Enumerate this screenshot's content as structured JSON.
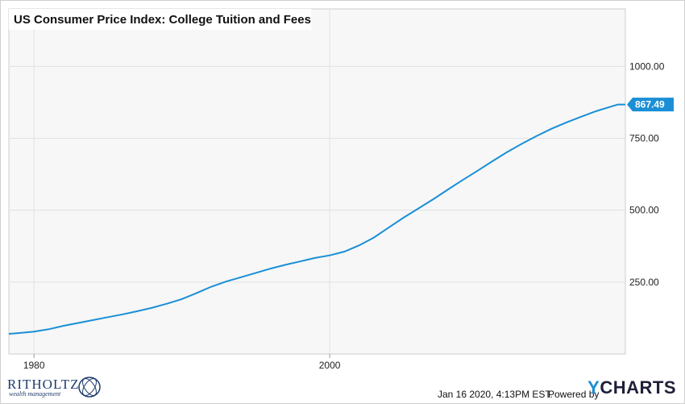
{
  "chart_data": {
    "type": "line",
    "title": "US Consumer Price Index: College Tuition and Fees",
    "xlabel": "",
    "ylabel": "",
    "ylim": [
      0,
      1200
    ],
    "xlim": [
      1978.3,
      2020.0
    ],
    "y_ticks": [
      250,
      500,
      750,
      1000
    ],
    "y_tick_labels": [
      "250.00",
      "500.00",
      "750.00",
      "1000.00"
    ],
    "x_ticks": [
      1980,
      2000
    ],
    "x_tick_labels": [
      "1980",
      "2000"
    ],
    "grid": true,
    "last_value": 867.49,
    "last_value_label": "867.49",
    "series": [
      {
        "color": "#1a8fd6",
        "x": [
          1978.3,
          1979.0,
          1980.0,
          1981.0,
          1982.0,
          1983.0,
          1984.0,
          1985.0,
          1986.0,
          1987.0,
          1988.0,
          1989.0,
          1990.0,
          1991.0,
          1992.0,
          1993.0,
          1994.0,
          1995.0,
          1996.0,
          1997.0,
          1998.0,
          1999.0,
          2000.0,
          2001.0,
          2002.0,
          2003.0,
          2004.0,
          2005.0,
          2006.0,
          2007.0,
          2008.0,
          2009.0,
          2010.0,
          2011.0,
          2012.0,
          2013.0,
          2014.0,
          2015.0,
          2016.0,
          2017.0,
          2018.0,
          2019.0,
          2019.5,
          2020.0
        ],
        "y": [
          70,
          73,
          78,
          86,
          98,
          108,
          118,
          128,
          138,
          149,
          161,
          175,
          191,
          212,
          234,
          252,
          267,
          282,
          297,
          310,
          322,
          334,
          343,
          356,
          378,
          405,
          440,
          474,
          506,
          538,
          572,
          605,
          637,
          670,
          702,
          731,
          758,
          783,
          805,
          825,
          844,
          860,
          867.49,
          867.49
        ]
      }
    ]
  },
  "brand": {
    "ritholtz_name": "RITHOLTZ",
    "ritholtz_sub": "wealth management"
  },
  "footer": {
    "timestamp": "Jan 16 2020, 4:13PM EST.",
    "powered_by": "Powered by",
    "ycharts_y": "Y",
    "ycharts_rest": "CHARTS"
  }
}
